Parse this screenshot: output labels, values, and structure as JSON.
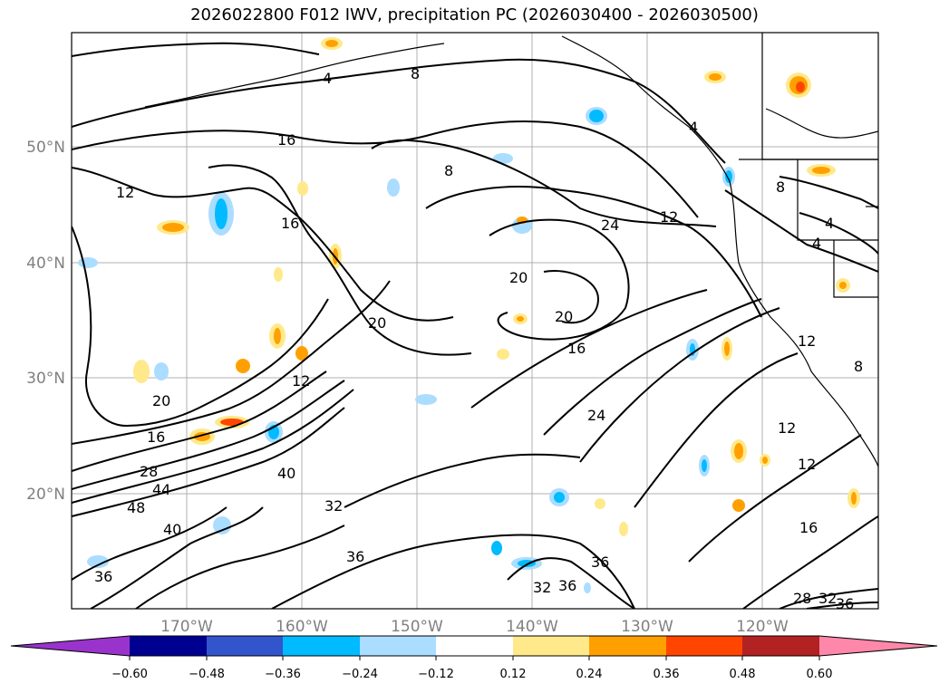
{
  "title": "2026022800 F012 IWV, precipitation PC (2026030400 - 2026030500)",
  "latitude_labels": [
    "50°N",
    "40°N",
    "30°N",
    "20°N"
  ],
  "longitude_labels": [
    "170°W",
    "160°W",
    "150°W",
    "140°W",
    "130°W",
    "120°W"
  ],
  "colorbar": {
    "ticks": [
      "−0.60",
      "−0.48",
      "−0.36",
      "−0.24",
      "−0.12",
      "0.12",
      "0.24",
      "0.36",
      "0.48",
      "0.60"
    ],
    "colors": [
      "#9933cc",
      "#000090",
      "#3355cc",
      "#00bbff",
      "#aaddff",
      "#ffffff",
      "#ffe98a",
      "#ffa000",
      "#ff4500",
      "#b22222",
      "#ff88aa"
    ]
  },
  "contour_labels": [
    {
      "text": "4"
    },
    {
      "text": "8"
    },
    {
      "text": "16"
    },
    {
      "text": "12"
    },
    {
      "text": "8"
    },
    {
      "text": "16"
    },
    {
      "text": "24"
    },
    {
      "text": "12"
    },
    {
      "text": "20"
    },
    {
      "text": "20"
    },
    {
      "text": "20"
    },
    {
      "text": "16"
    },
    {
      "text": "12"
    },
    {
      "text": "20"
    },
    {
      "text": "16"
    },
    {
      "text": "28"
    },
    {
      "text": "44"
    },
    {
      "text": "48"
    },
    {
      "text": "40"
    },
    {
      "text": "32"
    },
    {
      "text": "36"
    },
    {
      "text": "36"
    },
    {
      "text": "40"
    },
    {
      "text": "24"
    },
    {
      "text": "12"
    },
    {
      "text": "12"
    },
    {
      "text": "16"
    },
    {
      "text": "32"
    },
    {
      "text": "36"
    },
    {
      "text": "36"
    },
    {
      "text": "28"
    },
    {
      "text": "32"
    },
    {
      "text": "36"
    },
    {
      "text": "4"
    },
    {
      "text": "4"
    },
    {
      "text": "8"
    },
    {
      "text": "12"
    },
    {
      "text": "8"
    },
    {
      "text": "4"
    }
  ]
}
